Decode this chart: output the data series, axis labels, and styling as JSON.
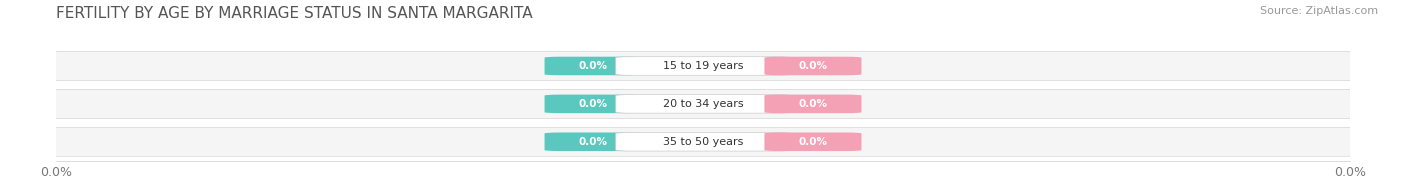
{
  "title": "FERTILITY BY AGE BY MARRIAGE STATUS IN SANTA MARGARITA",
  "source": "Source: ZipAtlas.com",
  "categories": [
    "15 to 19 years",
    "20 to 34 years",
    "35 to 50 years"
  ],
  "married_values": [
    0.0,
    0.0,
    0.0
  ],
  "unmarried_values": [
    0.0,
    0.0,
    0.0
  ],
  "married_color": "#5bc8c0",
  "unmarried_color": "#f4a0b5",
  "row_bg_color": "#e8e8e8",
  "row_inner_color": "#f5f5f5",
  "title_fontsize": 11,
  "source_fontsize": 8,
  "tick_label_fontsize": 9,
  "legend_fontsize": 9,
  "ylabel_color": "#777777",
  "background_color": "#ffffff",
  "left_axis_label": "0.0%",
  "right_axis_label": "0.0%"
}
